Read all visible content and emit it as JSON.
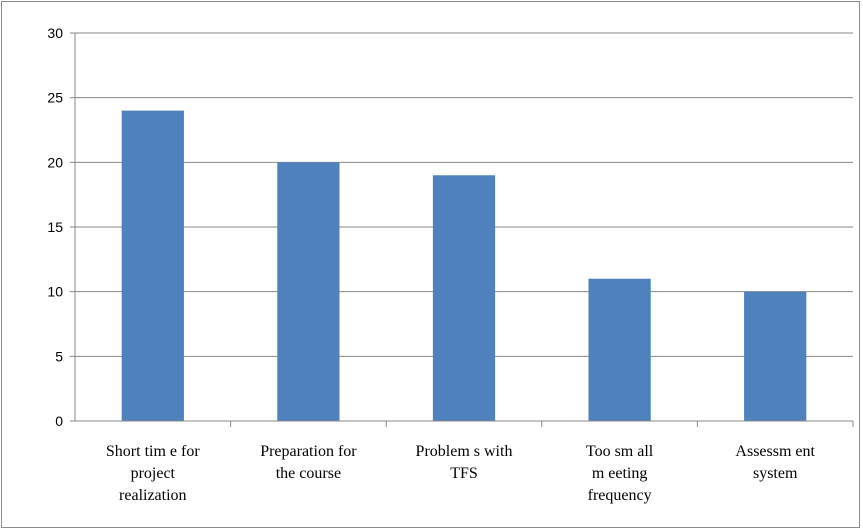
{
  "chart_data": {
    "type": "bar",
    "categories": [
      [
        "Short tim e for",
        "project",
        "realization"
      ],
      [
        "Preparation for",
        "the course"
      ],
      [
        "Problem s with",
        "TFS"
      ],
      [
        "Too sm all",
        "m eeting",
        "frequency"
      ],
      [
        "Assessm ent",
        "system"
      ]
    ],
    "values": [
      24,
      20,
      19,
      11,
      10
    ],
    "ylim": [
      0,
      30
    ],
    "yticks": [
      0,
      5,
      10,
      15,
      20,
      25,
      30
    ],
    "grid": true,
    "legend": "none",
    "colors": {
      "bar": "#4f81bd",
      "grid": "#878787",
      "axis": "#878787"
    }
  }
}
